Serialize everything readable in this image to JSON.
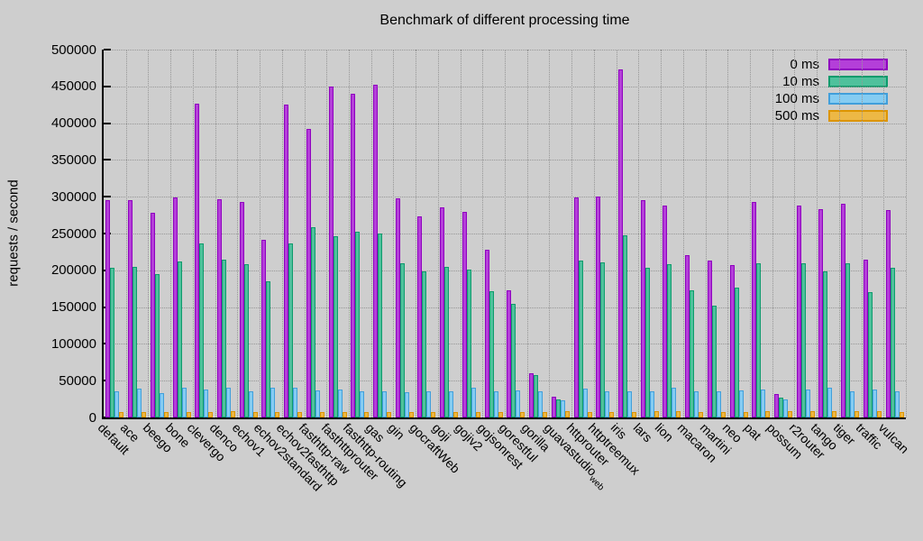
{
  "page": {
    "title": "Benchmark of different processing time"
  },
  "chart_data": {
    "type": "bar",
    "title": "Benchmark of different processing time",
    "xlabel": "",
    "ylabel": "requests / second",
    "ylim": [
      0,
      500000
    ],
    "ytick_step": 50000,
    "ytick_labels": [
      "0",
      "50000",
      "100000",
      "150000",
      "200000",
      "250000",
      "300000",
      "350000",
      "400000",
      "450000",
      "500000"
    ],
    "grid": true,
    "legend_position": "top-right-inside",
    "colors": {
      "background": "#CECECE",
      "grid": "#979797",
      "axis": "#000000",
      "text": "#000000"
    },
    "categories": [
      {
        "label": "default",
        "sub": ""
      },
      {
        "label": "ace",
        "sub": ""
      },
      {
        "label": "beego",
        "sub": ""
      },
      {
        "label": "bone",
        "sub": ""
      },
      {
        "label": "clevergo",
        "sub": ""
      },
      {
        "label": "denco",
        "sub": ""
      },
      {
        "label": "echov1",
        "sub": ""
      },
      {
        "label": "echov2standard",
        "sub": ""
      },
      {
        "label": "echov2fasthttp",
        "sub": ""
      },
      {
        "label": "fasthttp-raw",
        "sub": ""
      },
      {
        "label": "fasthttprouter",
        "sub": ""
      },
      {
        "label": "fasthttp-routing",
        "sub": ""
      },
      {
        "label": "gas",
        "sub": ""
      },
      {
        "label": "gin",
        "sub": ""
      },
      {
        "label": "gocraftWeb",
        "sub": ""
      },
      {
        "label": "goji",
        "sub": ""
      },
      {
        "label": "gojiv2",
        "sub": ""
      },
      {
        "label": "gojsonrest",
        "sub": ""
      },
      {
        "label": "gorestful",
        "sub": ""
      },
      {
        "label": "gorilla",
        "sub": ""
      },
      {
        "label": "guavastudio",
        "sub": "web"
      },
      {
        "label": "httprouter",
        "sub": ""
      },
      {
        "label": "httptreemux",
        "sub": ""
      },
      {
        "label": "iris",
        "sub": ""
      },
      {
        "label": "lars",
        "sub": ""
      },
      {
        "label": "lion",
        "sub": ""
      },
      {
        "label": "macaron",
        "sub": ""
      },
      {
        "label": "martini",
        "sub": ""
      },
      {
        "label": "neo",
        "sub": ""
      },
      {
        "label": "pat",
        "sub": ""
      },
      {
        "label": "possum",
        "sub": ""
      },
      {
        "label": "r2router",
        "sub": ""
      },
      {
        "label": "tango",
        "sub": ""
      },
      {
        "label": "tiger",
        "sub": ""
      },
      {
        "label": "traffic",
        "sub": ""
      },
      {
        "label": "vulcan",
        "sub": ""
      }
    ],
    "series": [
      {
        "name": "0 ms",
        "fill": "#B43FD9",
        "border": "#8F00BF",
        "values": [
          295000,
          295000,
          278000,
          299000,
          426000,
          297000,
          293000,
          242000,
          425000,
          392000,
          450000,
          440000,
          452000,
          298000,
          273000,
          286000,
          280000,
          228000,
          173000,
          60000,
          28000,
          299000,
          300000,
          473000,
          295000,
          288000,
          220000,
          213000,
          207000,
          293000,
          32000,
          288000,
          283000,
          290000,
          215000,
          282000
        ]
      },
      {
        "name": "10 ms",
        "fill": "#4FC19C",
        "border": "#0D9B6C",
        "values": [
          204000,
          205000,
          195000,
          212000,
          236000,
          214000,
          208000,
          185000,
          236000,
          258000,
          246000,
          252000,
          250000,
          210000,
          198000,
          205000,
          201000,
          172000,
          154000,
          58000,
          25000,
          213000,
          211000,
          247000,
          204000,
          208000,
          173000,
          152000,
          176000,
          209000,
          27000,
          209000,
          199000,
          209000,
          170000,
          204000
        ]
      },
      {
        "name": "100 ms",
        "fill": "#85CCF2",
        "border": "#419FDB",
        "values": [
          35000,
          39000,
          33000,
          40000,
          38000,
          41000,
          35000,
          40000,
          40000,
          37000,
          38000,
          36000,
          36000,
          34000,
          36000,
          36000,
          41000,
          35000,
          37000,
          35000,
          23000,
          39000,
          36000,
          35000,
          36000,
          40000,
          35000,
          36000,
          37000,
          38000,
          25000,
          38000,
          40000,
          36000,
          38000,
          36000
        ]
      },
      {
        "name": "500 ms",
        "fill": "#EDB845",
        "border": "#DD9500",
        "values": [
          7000,
          7500,
          7000,
          7500,
          7000,
          8000,
          7000,
          7500,
          7500,
          7500,
          7500,
          7500,
          7500,
          7000,
          7000,
          7000,
          7500,
          7000,
          7000,
          7000,
          8000,
          7500,
          7000,
          7000,
          8000,
          8000,
          7000,
          7000,
          7000,
          8000,
          8000,
          8000,
          8000,
          8000,
          8000,
          7000
        ]
      }
    ]
  }
}
